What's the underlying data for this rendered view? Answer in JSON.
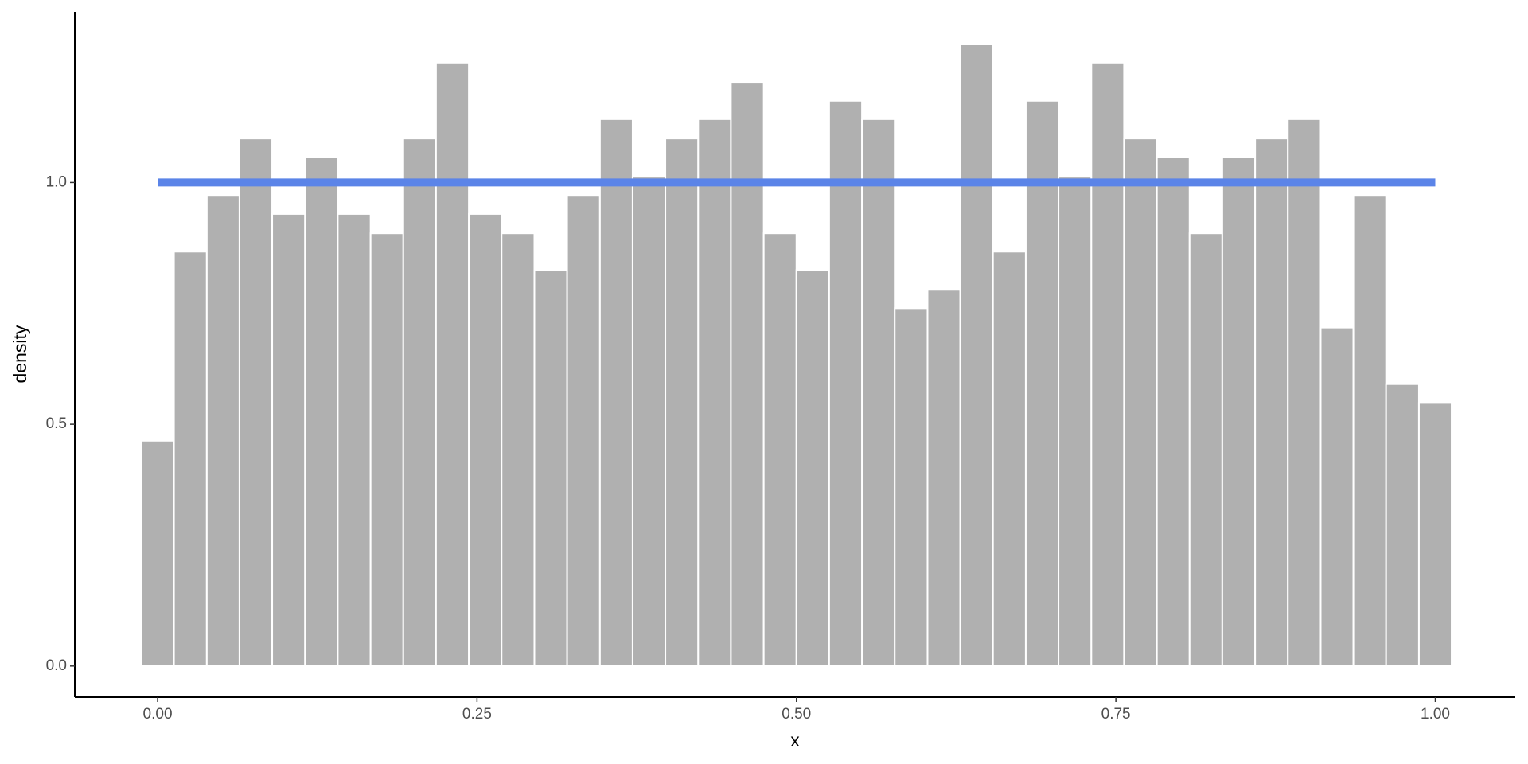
{
  "chart_data": {
    "type": "histogram",
    "x_label": "x",
    "y_label": "density",
    "bins": [
      -0.0128,
      0.0128,
      0.0385,
      0.0641,
      0.0897,
      0.1154,
      0.141,
      0.1667,
      0.1923,
      0.2179,
      0.2436,
      0.2692,
      0.2949,
      0.3205,
      0.3462,
      0.3718,
      0.3974,
      0.4231,
      0.4487,
      0.4744,
      0.5,
      0.5256,
      0.5513,
      0.5769,
      0.6026,
      0.6282,
      0.6538,
      0.6795,
      0.7051,
      0.7308,
      0.7564,
      0.7821,
      0.8077,
      0.8333,
      0.859,
      0.8846,
      0.9103,
      0.9359,
      0.9615,
      0.9872,
      1.0128
    ],
    "values": [
      0.466,
      0.857,
      0.974,
      1.091,
      0.935,
      1.052,
      0.935,
      0.895,
      1.091,
      1.248,
      0.935,
      0.895,
      0.819,
      0.974,
      1.131,
      1.012,
      1.091,
      1.131,
      1.208,
      0.895,
      0.819,
      1.169,
      1.131,
      0.74,
      0.778,
      1.286,
      0.857,
      1.169,
      1.012,
      1.248,
      1.091,
      1.052,
      0.895,
      1.052,
      1.091,
      1.131,
      0.7,
      0.974,
      0.583,
      0.544
    ],
    "color": "#b0b0b0",
    "line": {
      "x": [
        0,
        1
      ],
      "y": [
        1,
        1
      ],
      "color": "#5b84e8"
    },
    "xlim": [
      -0.0648,
      1.0626
    ],
    "ylim": [
      -0.0645,
      1.353
    ],
    "xticks": [
      {
        "value": 0,
        "label": "0.00"
      },
      {
        "value": 0.25,
        "label": "0.25"
      },
      {
        "value": 0.5,
        "label": "0.50"
      },
      {
        "value": 0.75,
        "label": "0.75"
      },
      {
        "value": 1,
        "label": "1.00"
      }
    ],
    "yticks": [
      {
        "value": 0,
        "label": "0.0"
      },
      {
        "value": 0.5,
        "label": "0.5"
      },
      {
        "value": 1,
        "label": "1.0"
      }
    ]
  }
}
